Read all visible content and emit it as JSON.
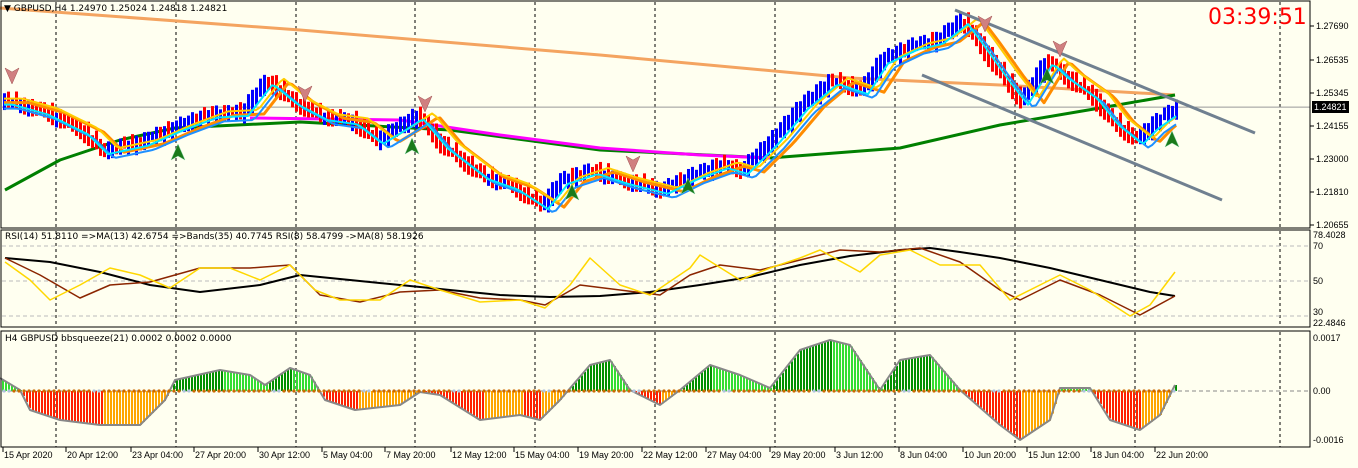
{
  "header": {
    "symbol_label": "GBPUSD,H4",
    "ohlc": "1.24970 1.25024 1.24818 1.24821"
  },
  "clock": "03:39:51",
  "price_axis": {
    "labels": [
      "1.27690",
      "1.26535",
      "1.25345",
      "1.24155",
      "1.23000",
      "1.21810",
      "1.20655"
    ],
    "current": "1.24821"
  },
  "rsi_panel": {
    "header": "RSI(14) 51.8110  =>MA(13) 42.6754  =>Bands(35) 40.7745  RSI(8) 58.4799  ->MA(8) 58.1926",
    "labels": [
      "78.4028",
      "70",
      "50",
      "30",
      "22.4846"
    ]
  },
  "bb_panel": {
    "header": "H4 GBPUSD bbsqueeze(21) 0.0002 0.0002 0.0000",
    "labels": [
      "0.0017",
      "0.00",
      "-0.0016"
    ]
  },
  "time_axis": [
    "15 Apr 2020",
    "20 Apr 12:00",
    "23 Apr 04:00",
    "27 Apr 20:00",
    "30 Apr 12:00",
    "5 May 04:00",
    "7 May 20:00",
    "12 May 12:00",
    "15 May 04:00",
    "19 May 20:00",
    "22 May 12:00",
    "27 May 04:00",
    "29 May 20:00",
    "3 Jun 12:00",
    "8 Jun 04:00",
    "10 Jun 20:00",
    "15 Jun 12:00",
    "18 Jun 04:00",
    "22 Jun 20:00"
  ],
  "colors": {
    "background": "#fffff0",
    "bull": "#0000ff",
    "bear": "#ff0000",
    "ma_slow": "#f4a460",
    "ma_trend": "#008000",
    "ma_mid": "#ff00ff",
    "channel": "#708090",
    "clock": "#ff0000",
    "rsi14": "#8b2500",
    "rsi8": "#ffd700",
    "rsi_ma": "#000000",
    "squeeze_up": "#00c000",
    "squeeze_down": "#ff2000"
  },
  "chart_data": {
    "type": "bar",
    "symbol": "GBPUSD",
    "timeframe": "H4",
    "ylim": [
      1.20655,
      1.2769
    ],
    "current_price": 1.24821,
    "close_path": [
      [
        5,
        1.2505
      ],
      [
        40,
        1.247
      ],
      [
        80,
        1.24
      ],
      [
        100,
        1.233
      ],
      [
        140,
        1.236
      ],
      [
        175,
        1.2414
      ],
      [
        210,
        1.246
      ],
      [
        240,
        1.2465
      ],
      [
        265,
        1.2578
      ],
      [
        290,
        1.2505
      ],
      [
        320,
        1.245
      ],
      [
        350,
        1.2435
      ],
      [
        375,
        1.2366
      ],
      [
        400,
        1.242
      ],
      [
        415,
        1.2455
      ],
      [
        440,
        1.235
      ],
      [
        480,
        1.2242
      ],
      [
        510,
        1.2205
      ],
      [
        540,
        1.2136
      ],
      [
        560,
        1.2225
      ],
      [
        590,
        1.226
      ],
      [
        620,
        1.2225
      ],
      [
        660,
        1.219
      ],
      [
        690,
        1.2242
      ],
      [
        720,
        1.228
      ],
      [
        740,
        1.226
      ],
      [
        770,
        1.2365
      ],
      [
        800,
        1.249
      ],
      [
        830,
        1.2578
      ],
      [
        860,
        1.2542
      ],
      [
        880,
        1.265
      ],
      [
        910,
        1.27
      ],
      [
        935,
        1.272
      ],
      [
        960,
        1.279
      ],
      [
        975,
        1.272
      ],
      [
        1000,
        1.2596
      ],
      [
        1020,
        1.2505
      ],
      [
        1045,
        1.265
      ],
      [
        1060,
        1.26
      ],
      [
        1090,
        1.2525
      ],
      [
        1110,
        1.2435
      ],
      [
        1135,
        1.2365
      ],
      [
        1150,
        1.242
      ],
      [
        1175,
        1.2482
      ]
    ],
    "rsi_ylim": [
      22.4846,
      78.4028
    ]
  }
}
